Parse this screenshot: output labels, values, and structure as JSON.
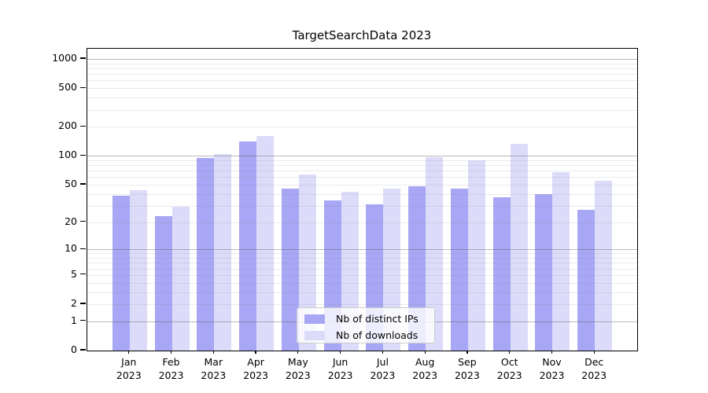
{
  "figure": {
    "background": "#ffffff",
    "frame_color": "#000000"
  },
  "chart_data": {
    "type": "bar",
    "title": "TargetSearchData 2023",
    "categories": [
      "Jan 2023",
      "Feb 2023",
      "Mar 2023",
      "Apr 2023",
      "May 2023",
      "Jun 2023",
      "Jul 2023",
      "Aug 2023",
      "Sep 2023",
      "Oct 2023",
      "Nov 2023",
      "Dec 2023"
    ],
    "series": [
      {
        "name": "Nb of distinct IPs",
        "color": "#a7a7f5",
        "values": [
          38,
          23,
          95,
          140,
          45,
          34,
          31,
          48,
          45,
          37,
          40,
          27
        ]
      },
      {
        "name": "Nb of downloads",
        "color": "#dcdcfa",
        "values": [
          44,
          29,
          105,
          160,
          64,
          42,
          45,
          97,
          89,
          134,
          67,
          55
        ]
      }
    ],
    "xlabel": "",
    "ylabel": "",
    "yscale": "log1p",
    "ylim": [
      0,
      1300
    ],
    "y_ticks": [
      1000,
      500,
      200,
      100,
      50,
      20,
      10,
      5,
      2,
      1,
      0
    ],
    "y_minor_gridlines": [
      2,
      3,
      4,
      5,
      6,
      7,
      8,
      9,
      20,
      30,
      40,
      50,
      60,
      70,
      80,
      90,
      200,
      300,
      400,
      500,
      600,
      700,
      800,
      900
    ],
    "y_major_gridlines": [
      1,
      10,
      100,
      1000
    ],
    "grid": "on",
    "legend_position": "lower center"
  },
  "colors": {
    "major_grid": "rgba(90,90,90,0.42)",
    "minor_grid": "rgba(130,130,130,0.16)",
    "tick_text": "#000000",
    "legend_background": "rgba(255,255,255,0.8)",
    "legend_border": "#cccccc"
  }
}
